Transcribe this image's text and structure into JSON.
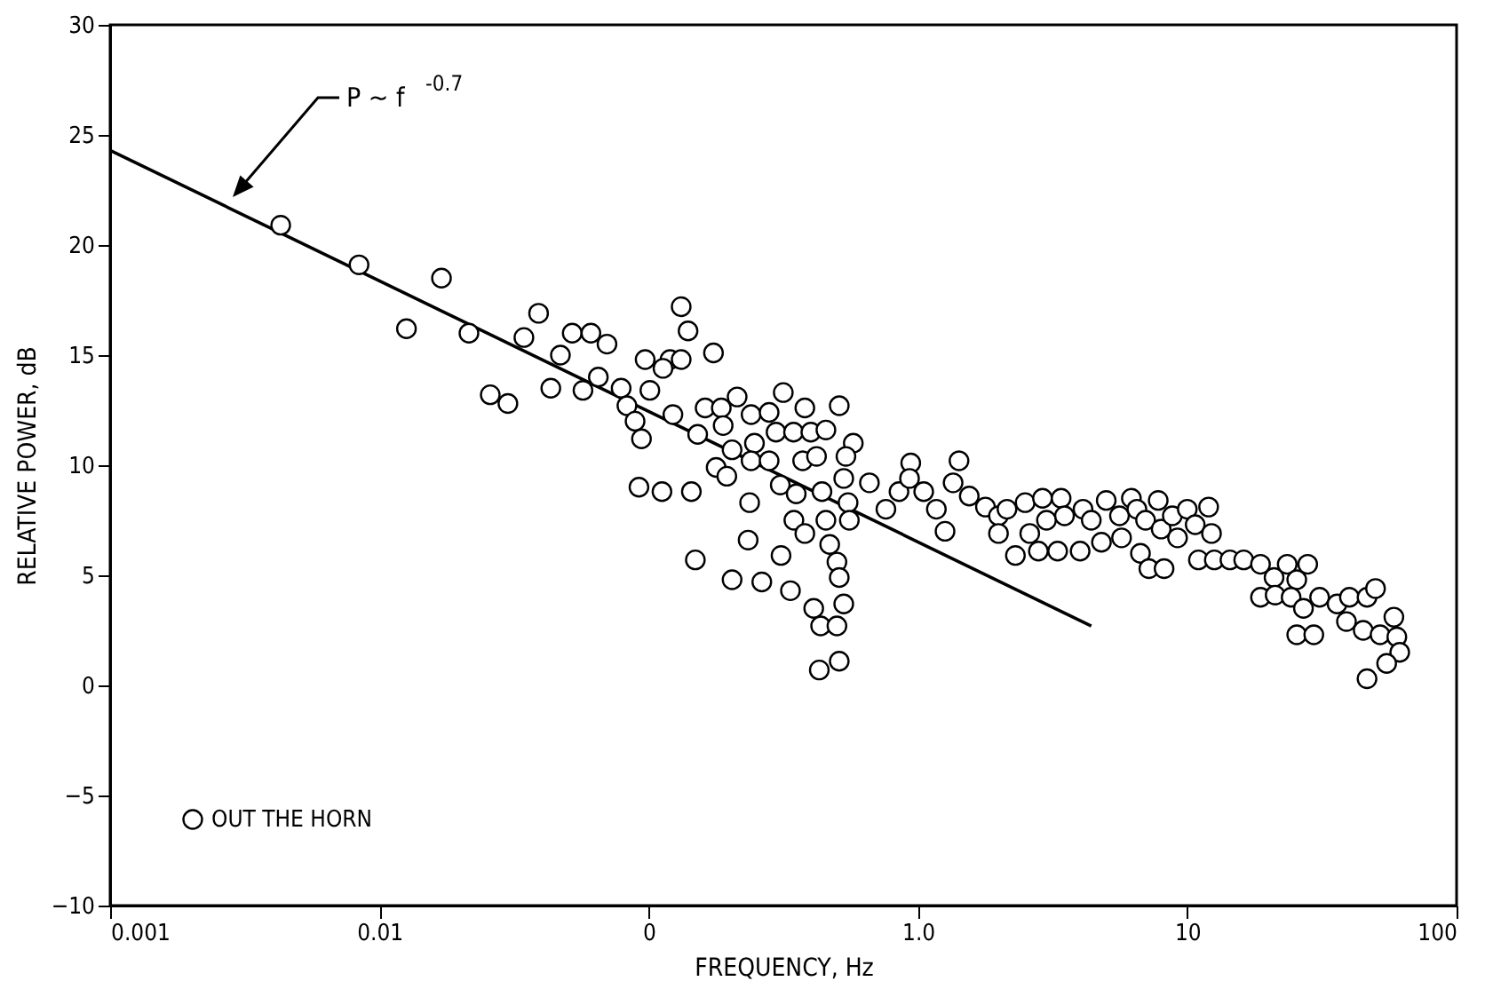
{
  "chart_data": {
    "type": "scatter",
    "xlabel": "FREQUENCY, Hz",
    "ylabel": "RELATIVE POWER, dB",
    "log": "x",
    "grid": false,
    "legend": "bottom left",
    "xlim": [
      0.001,
      100
    ],
    "ylim": [
      -10,
      30
    ],
    "xticks": [
      {
        "value": 0.001,
        "label": "0.001"
      },
      {
        "value": 0.01,
        "label": "0.01"
      },
      {
        "value": 0.1,
        "label": "0"
      },
      {
        "value": 1,
        "label": "1.0"
      },
      {
        "value": 10,
        "label": "10"
      },
      {
        "value": 100,
        "label": "100"
      }
    ],
    "yticks": [
      -10,
      -5,
      0,
      5,
      10,
      15,
      20,
      25,
      30
    ],
    "annotations": [
      "P ~ f$^{-0.7}$"
    ],
    "series": [
      {
        "name": "OUT THE HORN",
        "marker": "circle",
        "color": "#000000",
        "x": [
          0.0043,
          0.0084,
          0.017,
          0.0126,
          0.0215,
          0.0258,
          0.03,
          0.0344,
          0.039,
          0.0433,
          0.047,
          0.052,
          0.061,
          0.057,
          0.065,
          0.07,
          0.079,
          0.083,
          0.089,
          0.094,
          0.097,
          0.101,
          0.12,
          0.132,
          0.132,
          0.123,
          0.14,
          0.113,
          0.174,
          0.092,
          0.112,
          0.144,
          0.152,
          0.162,
          0.186,
          0.213,
          0.189,
          0.204,
          0.178,
          0.195,
          0.24,
          0.247,
          0.24,
          0.237,
          0.234,
          0.149,
          0.204,
          0.263,
          0.316,
          0.28,
          0.297,
          0.28,
          0.308,
          0.31,
          0.336,
          0.38,
          0.345,
          0.373,
          0.353,
          0.346,
          0.38,
          0.4,
          0.455,
          0.42,
          0.44,
          0.455,
          0.47,
          0.5,
          0.51,
          0.41,
          0.435,
          0.5,
          0.53,
          0.43,
          0.51,
          0.51,
          0.575,
          0.54,
          0.53,
          0.55,
          0.556,
          0.66,
          0.76,
          0.85,
          0.94,
          0.93,
          1.05,
          1.17,
          1.26,
          1.42,
          1.35,
          1.55,
          1.78,
          1.99,
          1.99,
          2.14,
          2.3,
          2.5,
          2.6,
          2.8,
          2.9,
          3.0,
          3.3,
          3.4,
          3.5,
          4.0,
          4.1,
          4.4,
          4.8,
          5.0,
          5.6,
          5.7,
          6.2,
          6.7,
          6.5,
          7.0,
          7.2,
          7.8,
          8.2,
          8.0,
          8.8,
          9.2,
          10,
          10.7,
          12,
          12.3,
          11,
          12.6,
          14.4,
          16.2,
          18.7,
          21,
          23.5,
          25.5,
          28,
          18.7,
          21.2,
          24.3,
          25.5,
          29.5,
          27,
          31,
          36,
          40,
          46.5,
          50,
          58.5,
          39,
          45,
          52,
          60,
          61.5,
          55,
          46.5
        ],
        "values": [
          20.9,
          19.1,
          18.5,
          16.2,
          16.0,
          13.2,
          12.8,
          15.8,
          16.9,
          13.5,
          15.0,
          16.0,
          16.0,
          13.4,
          14.0,
          15.5,
          13.5,
          12.7,
          12.0,
          11.2,
          14.8,
          13.4,
          14.8,
          14.8,
          17.2,
          12.3,
          16.1,
          14.4,
          15.1,
          9.0,
          8.8,
          8.8,
          11.4,
          12.6,
          12.6,
          13.1,
          11.8,
          10.7,
          9.9,
          9.5,
          12.3,
          11.0,
          10.2,
          8.3,
          6.6,
          5.7,
          4.8,
          4.7,
          13.3,
          12.4,
          11.5,
          10.2,
          9.1,
          5.9,
          4.3,
          12.6,
          11.5,
          10.2,
          8.7,
          7.5,
          6.9,
          11.5,
          11.6,
          10.4,
          8.8,
          7.5,
          6.4,
          5.6,
          4.9,
          3.5,
          2.7,
          2.7,
          3.7,
          0.7,
          1.1,
          12.7,
          11.0,
          10.4,
          9.4,
          8.3,
          7.5,
          9.2,
          8.0,
          8.8,
          10.1,
          9.4,
          8.8,
          8.0,
          7.0,
          10.2,
          9.2,
          8.6,
          8.1,
          7.7,
          6.9,
          8.0,
          5.9,
          8.3,
          6.9,
          6.1,
          8.5,
          7.5,
          6.1,
          8.5,
          7.7,
          6.1,
          8.0,
          7.5,
          6.5,
          8.4,
          7.7,
          6.7,
          8.5,
          6.0,
          8.0,
          7.5,
          5.3,
          8.4,
          5.3,
          7.1,
          7.7,
          6.7,
          8.0,
          7.3,
          8.1,
          6.9,
          5.7,
          5.7,
          5.7,
          5.7,
          5.5,
          4.9,
          5.5,
          4.8,
          5.5,
          4.0,
          4.1,
          4.0,
          2.3,
          2.3,
          3.5,
          4.0,
          3.7,
          4.0,
          4.0,
          4.4,
          3.1,
          2.9,
          2.5,
          2.3,
          2.2,
          1.5,
          1.0,
          0.3
        ]
      },
      {
        "type": "line",
        "marker": "none",
        "color": "#000000",
        "x": [
          0.001,
          4.4
        ],
        "values": [
          24.3,
          2.7
        ]
      }
    ]
  }
}
